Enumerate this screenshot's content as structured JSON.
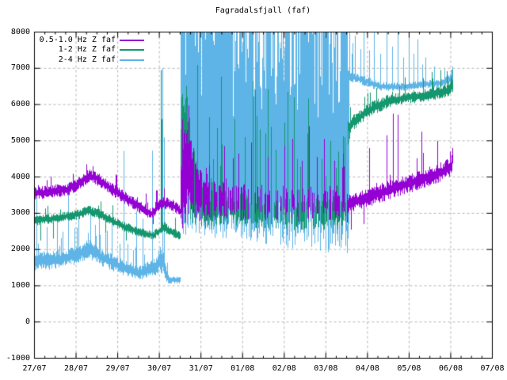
{
  "chart_data": {
    "type": "line",
    "title": "Fagradalsfjall (faf)",
    "x_axis": {
      "tick_labels": [
        "27/07",
        "28/07",
        "29/07",
        "30/07",
        "31/07",
        "01/08",
        "02/08",
        "03/08",
        "04/08",
        "05/08",
        "06/08",
        "07/08"
      ],
      "days_span": 11,
      "minor_ticks_per_day": 4,
      "grid": true
    },
    "y_axis": {
      "min": -1000,
      "max": 8000,
      "step": 1000,
      "tick_labels": [
        "-1000",
        "0",
        "1000",
        "2000",
        "3000",
        "4000",
        "5000",
        "6000",
        "7000",
        "8000"
      ],
      "grid": true
    },
    "legend": {
      "position": "top-left",
      "entries": [
        {
          "label": "0.5-1.0 Hz Z faf",
          "color": "#9400d3"
        },
        {
          "label": "1-2 Hz Z faf",
          "color": "#14966e"
        },
        {
          "label": "2-4 Hz Z faf",
          "color": "#5eb4e6"
        }
      ]
    },
    "colors": {
      "grid": "#b4b4b4",
      "axis": "#000000",
      "background": "#ffffff"
    },
    "data_end_day": 10.05,
    "series": [
      {
        "name": "2-4 Hz Z faf",
        "color": "#5eb4e6",
        "z": 1,
        "segments": [
          {
            "t0": 0,
            "t1": 3.5,
            "keypoints": [
              [
                0,
                1700,
                280
              ],
              [
                0.3,
                1680,
                260
              ],
              [
                0.7,
                1760,
                260
              ],
              [
                1.0,
                1850,
                270
              ],
              [
                1.3,
                2010,
                280
              ],
              [
                1.6,
                1800,
                250
              ],
              [
                2.0,
                1560,
                230
              ],
              [
                2.5,
                1350,
                210
              ],
              [
                2.9,
                1520,
                240
              ],
              [
                3.05,
                1750,
                420
              ],
              [
                3.15,
                1350,
                250
              ],
              [
                3.22,
                1170,
                110
              ],
              [
                3.5,
                1150,
                100
              ]
            ],
            "spike_prob": 0.17,
            "spike_extra": [
              120,
              650
            ]
          },
          {
            "t0": 3.5,
            "t1": 7.52,
            "burst": true,
            "keypoints": [
              [
                3.5,
                3000,
                600
              ],
              [
                4.0,
                2800,
                450
              ],
              [
                5.0,
                2700,
                450
              ],
              [
                5.8,
                2700,
                600
              ],
              [
                6.8,
                2600,
                700
              ],
              [
                7.3,
                2500,
                700
              ],
              [
                7.52,
                2600,
                800
              ]
            ],
            "reach_prob": [
              [
                3.5,
                0.93
              ],
              [
                4.5,
                0.8
              ],
              [
                5.0,
                0.72
              ],
              [
                5.5,
                0.6
              ],
              [
                6.2,
                0.55
              ],
              [
                6.8,
                0.6
              ],
              [
                7.3,
                0.72
              ],
              [
                7.52,
                0.8
              ]
            ],
            "top_range": [
              5600,
              8000
            ]
          },
          {
            "t0": 7.52,
            "t1": 10.05,
            "keypoints": [
              [
                7.52,
                6800,
                170
              ],
              [
                7.8,
                6700,
                140
              ],
              [
                8.3,
                6500,
                130
              ],
              [
                8.8,
                6480,
                120
              ],
              [
                9.3,
                6550,
                110
              ],
              [
                9.8,
                6600,
                110
              ],
              [
                10.05,
                6760,
                160
              ]
            ],
            "spike_prob": 0.06,
            "spike_extra": [
              150,
              900
            ]
          }
        ],
        "spikes": [
          [
            0.04,
            3650
          ],
          [
            0.3,
            2620
          ],
          [
            0.55,
            2750
          ],
          [
            0.8,
            3820
          ],
          [
            1.05,
            2950
          ],
          [
            1.35,
            3150
          ],
          [
            1.55,
            2980
          ],
          [
            1.85,
            2720
          ],
          [
            2.15,
            4720
          ],
          [
            2.45,
            3050
          ],
          [
            2.6,
            2850
          ],
          [
            2.82,
            4730
          ],
          [
            3.07,
            7000
          ],
          [
            3.12,
            5100
          ],
          [
            7.56,
            8000
          ],
          [
            7.62,
            7400
          ],
          [
            7.7,
            7900
          ],
          [
            7.9,
            8000
          ],
          [
            8.05,
            7500
          ],
          [
            8.15,
            8000
          ],
          [
            8.3,
            7400
          ],
          [
            8.45,
            8000
          ],
          [
            8.6,
            7600
          ],
          [
            8.72,
            8000
          ],
          [
            8.85,
            7300
          ],
          [
            9.0,
            8000
          ],
          [
            9.1,
            7400
          ],
          [
            9.2,
            7800
          ],
          [
            9.32,
            7100
          ],
          [
            9.6,
            7050
          ],
          [
            9.85,
            6980
          ],
          [
            10.03,
            7050
          ]
        ],
        "down_spikes": [
          [
            7.47,
            2100
          ],
          [
            7.505,
            1900
          ],
          [
            7.53,
            2300
          ],
          [
            7.555,
            2700
          ]
        ]
      },
      {
        "name": "1-2 Hz Z faf",
        "color": "#14966e",
        "z": 2,
        "segments": [
          {
            "t0": 0,
            "t1": 3.5,
            "keypoints": [
              [
                0,
                2800,
                140
              ],
              [
                0.5,
                2860,
                140
              ],
              [
                1.0,
                2960,
                150
              ],
              [
                1.3,
                3080,
                150
              ],
              [
                1.6,
                2950,
                140
              ],
              [
                2.0,
                2700,
                140
              ],
              [
                2.5,
                2480,
                130
              ],
              [
                2.85,
                2390,
                120
              ],
              [
                3.1,
                2620,
                170
              ],
              [
                3.3,
                2460,
                130
              ],
              [
                3.5,
                2400,
                130
              ]
            ],
            "spike_prob": 0.05,
            "spike_extra": [
              100,
              400
            ]
          },
          {
            "t0": 3.5,
            "t1": 7.52,
            "keypoints": [
              [
                3.5,
                4300,
                2100
              ],
              [
                3.62,
                5100,
                1800
              ],
              [
                3.75,
                4100,
                1500
              ],
              [
                3.95,
                3300,
                750
              ],
              [
                4.2,
                3150,
                550
              ],
              [
                5.0,
                3100,
                500
              ],
              [
                5.6,
                3050,
                480
              ],
              [
                6.3,
                2950,
                450
              ],
              [
                7.0,
                3000,
                480
              ],
              [
                7.52,
                3100,
                520
              ]
            ],
            "density": [
              [
                3.5,
                1.0
              ],
              [
                4.3,
                0.85
              ],
              [
                5.3,
                0.75
              ],
              [
                5.9,
                0.5
              ],
              [
                6.8,
                0.55
              ],
              [
                7.52,
                0.7
              ]
            ],
            "spike_prob": 0.11,
            "spike_extra": [
              300,
              3200
            ]
          },
          {
            "t0": 7.52,
            "t1": 10.05,
            "keypoints": [
              [
                7.52,
                5350,
                230
              ],
              [
                7.8,
                5650,
                210
              ],
              [
                8.1,
                5900,
                200
              ],
              [
                8.5,
                6100,
                190
              ],
              [
                9.0,
                6200,
                180
              ],
              [
                9.5,
                6280,
                180
              ],
              [
                9.9,
                6380,
                190
              ],
              [
                10.05,
                6560,
                230
              ]
            ],
            "spike_prob": 0.05,
            "spike_extra": [
              100,
              450
            ]
          }
        ],
        "spikes": [
          [
            3.04,
            6950
          ],
          [
            3.06,
            5600
          ],
          [
            4.2,
            5650
          ],
          [
            4.5,
            4900
          ],
          [
            4.8,
            5600
          ],
          [
            5.05,
            5100
          ],
          [
            5.3,
            6400
          ],
          [
            5.55,
            5200
          ],
          [
            5.8,
            4700
          ],
          [
            6.0,
            5500
          ],
          [
            6.3,
            4500
          ],
          [
            6.55,
            5200
          ],
          [
            6.9,
            4500
          ],
          [
            7.1,
            5000
          ],
          [
            7.3,
            4700
          ],
          [
            7.45,
            5100
          ],
          [
            8.9,
            6750
          ],
          [
            9.55,
            6900
          ],
          [
            9.75,
            6950
          ],
          [
            9.9,
            6920
          ],
          [
            10.02,
            6960
          ]
        ],
        "down_spikes": [
          [
            0.15,
            2250
          ],
          [
            0.45,
            2300
          ],
          [
            1.7,
            2450
          ],
          [
            2.2,
            2250
          ],
          [
            7.53,
            4900
          ],
          [
            7.56,
            5050
          ]
        ]
      },
      {
        "name": "0.5-1.0 Hz Z faf",
        "color": "#9400d3",
        "z": 3,
        "segments": [
          {
            "t0": 0,
            "t1": 3.5,
            "keypoints": [
              [
                0,
                3550,
                180
              ],
              [
                0.4,
                3600,
                180
              ],
              [
                0.8,
                3660,
                180
              ],
              [
                1.1,
                3850,
                190
              ],
              [
                1.3,
                4030,
                190
              ],
              [
                1.5,
                3960,
                190
              ],
              [
                1.8,
                3700,
                180
              ],
              [
                2.1,
                3480,
                180
              ],
              [
                2.5,
                3180,
                170
              ],
              [
                2.8,
                2990,
                160
              ],
              [
                3.05,
                3290,
                180
              ],
              [
                3.3,
                3230,
                170
              ],
              [
                3.5,
                3050,
                180
              ]
            ],
            "spike_prob": 0.05,
            "spike_extra": [
              100,
              400
            ]
          },
          {
            "t0": 3.5,
            "t1": 7.52,
            "keypoints": [
              [
                3.5,
                3700,
                1300
              ],
              [
                3.65,
                4100,
                1400
              ],
              [
                3.8,
                3900,
                1150
              ],
              [
                4.0,
                3500,
                750
              ],
              [
                4.3,
                3400,
                620
              ],
              [
                5.0,
                3350,
                560
              ],
              [
                5.7,
                3300,
                520
              ],
              [
                6.4,
                3250,
                500
              ],
              [
                7.0,
                3300,
                520
              ],
              [
                7.52,
                3250,
                550
              ]
            ],
            "density": [
              [
                3.5,
                1.0
              ],
              [
                4.1,
                0.75
              ],
              [
                4.6,
                0.5
              ],
              [
                5.4,
                0.4
              ],
              [
                6.2,
                0.35
              ],
              [
                7.0,
                0.45
              ],
              [
                7.52,
                0.5
              ]
            ],
            "spike_prob": 0.06,
            "spike_extra": [
              200,
              1500
            ]
          },
          {
            "t0": 7.52,
            "t1": 10.05,
            "keypoints": [
              [
                7.52,
                3250,
                270
              ],
              [
                7.8,
                3360,
                270
              ],
              [
                8.2,
                3520,
                270
              ],
              [
                8.6,
                3680,
                270
              ],
              [
                9.0,
                3830,
                270
              ],
              [
                9.4,
                3980,
                270
              ],
              [
                9.8,
                4150,
                280
              ],
              [
                10.0,
                4300,
                290
              ],
              [
                10.05,
                4600,
                300
              ]
            ],
            "spike_prob": 0.05,
            "spike_extra": [
              100,
              500
            ]
          }
        ],
        "spikes": [
          [
            1.25,
            4350
          ],
          [
            1.4,
            4300
          ],
          [
            3.55,
            5600
          ],
          [
            3.6,
            5300
          ],
          [
            4.55,
            4850
          ],
          [
            4.9,
            4650
          ],
          [
            5.2,
            4950
          ],
          [
            5.6,
            4550
          ],
          [
            6.0,
            4850
          ],
          [
            6.2,
            5050
          ],
          [
            6.42,
            4450
          ],
          [
            6.6,
            5400
          ],
          [
            6.78,
            4550
          ],
          [
            6.95,
            5050
          ],
          [
            7.2,
            4450
          ],
          [
            7.42,
            4650
          ],
          [
            8.05,
            4800
          ],
          [
            8.45,
            5150
          ],
          [
            8.62,
            5750
          ],
          [
            8.73,
            5720
          ],
          [
            9.3,
            5250
          ],
          [
            9.67,
            5000
          ]
        ],
        "down_spikes": [
          [
            2.85,
            2700
          ],
          [
            7.6,
            2550
          ],
          [
            7.9,
            2700
          ]
        ]
      }
    ]
  }
}
